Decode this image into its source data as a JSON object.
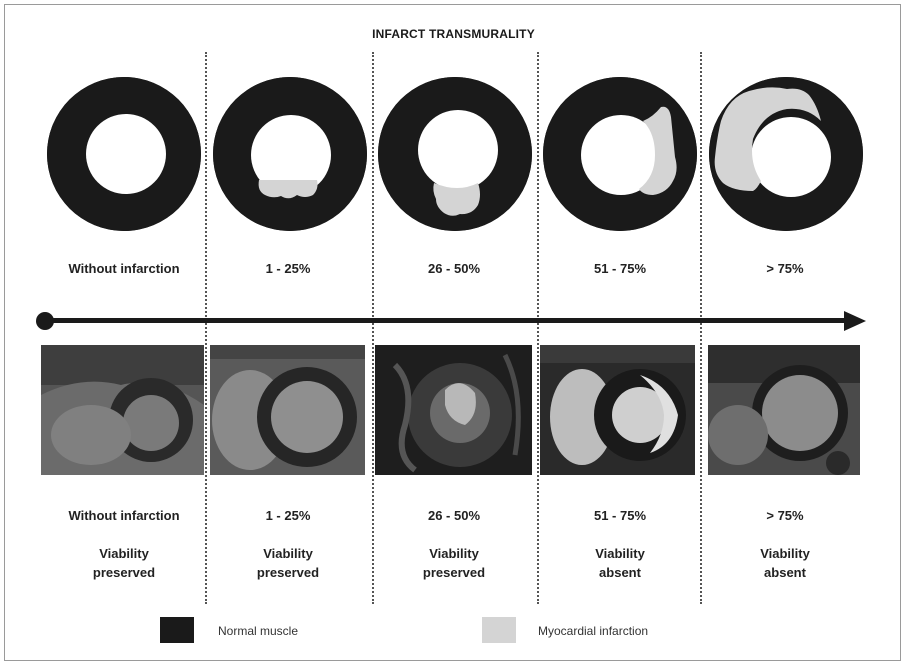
{
  "title": "INFARCT TRANSMURALITY",
  "columns": [
    {
      "label": "Without infarction",
      "viability_line1": "Viability",
      "viability_line2": "preserved",
      "icon": "heart-ring-no-infarction"
    },
    {
      "label": "1 - 25%",
      "viability_line1": "Viability",
      "viability_line2": "preserved",
      "icon": "heart-ring-1-25"
    },
    {
      "label": "26 - 50%",
      "viability_line1": "Viability",
      "viability_line2": "preserved",
      "icon": "heart-ring-26-50"
    },
    {
      "label": "51 - 75%",
      "viability_line1": "Viability",
      "viability_line2": "absent",
      "icon": "heart-ring-51-75"
    },
    {
      "label": "> 75%",
      "viability_line1": "Viability",
      "viability_line2": "absent",
      "icon": "heart-ring-over-75"
    }
  ],
  "legend": {
    "normal_muscle": "Normal muscle",
    "myocardial_infarction": "Myocardial infarction"
  },
  "colors": {
    "normal_muscle": "#1a1a1a",
    "myocardial_infarction": "#d4d4d4",
    "cavity": "#ffffff"
  }
}
